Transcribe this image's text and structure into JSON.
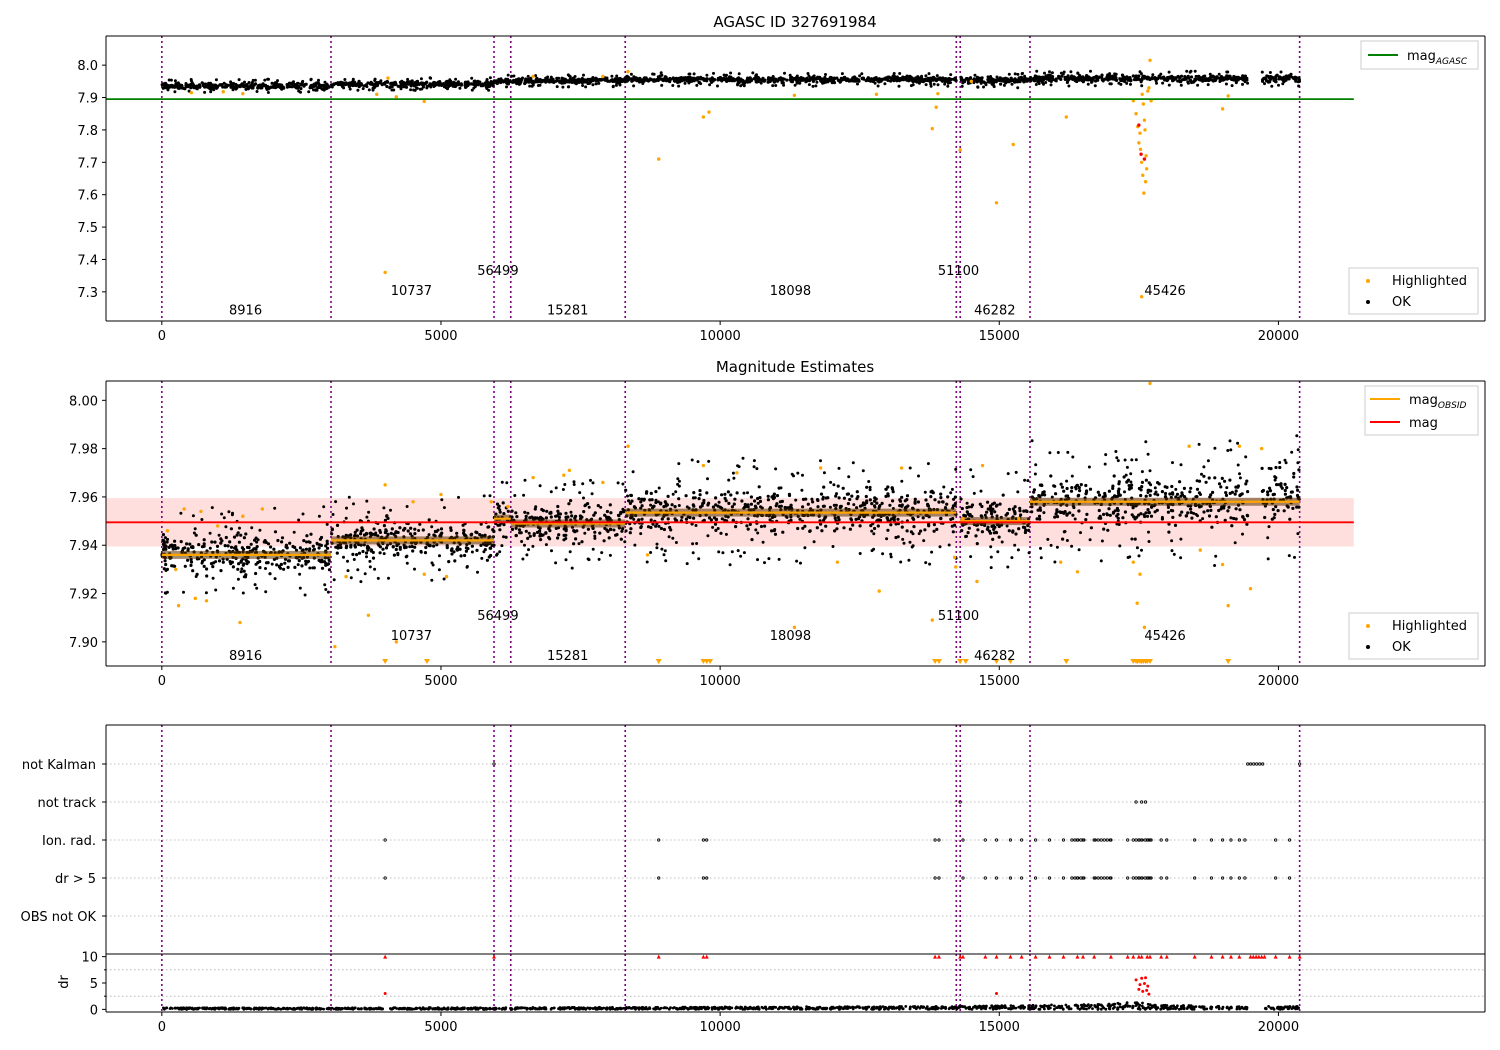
{
  "chart_data": [
    {
      "type": "scatter",
      "id": "panel_mag",
      "title": "AGASC ID 327691984",
      "xlim": [
        -1000,
        23700
      ],
      "ylim": [
        7.21,
        8.09
      ],
      "xticks": [
        0,
        5000,
        10000,
        15000,
        20000
      ],
      "yticks": [
        7.3,
        7.4,
        7.5,
        7.6,
        7.7,
        7.8,
        7.9,
        8.0
      ],
      "ytick_labels": [
        "7.3",
        "7.4",
        "7.5",
        "7.6",
        "7.7",
        "7.8",
        "7.9",
        "8.0"
      ],
      "obs_boundaries": [
        0,
        3030,
        5950,
        6250,
        8300,
        14230,
        14300,
        15550,
        20380
      ],
      "obsid_labels": [
        {
          "text": "8916",
          "x": 1500,
          "y": 7.245
        },
        {
          "text": "10737",
          "x": 4470,
          "y": 7.306
        },
        {
          "text": "56499",
          "x": 6020,
          "y": 7.368
        },
        {
          "text": "15281",
          "x": 7270,
          "y": 7.245
        },
        {
          "text": "18098",
          "x": 11260,
          "y": 7.306
        },
        {
          "text": "51100",
          "x": 14270,
          "y": 7.368
        },
        {
          "text": "46282",
          "x": 14920,
          "y": 7.245
        },
        {
          "text": "45426",
          "x": 17970,
          "y": 7.306
        }
      ],
      "mag_agasc": {
        "value": 7.895,
        "x_range": [
          -1000,
          21350
        ],
        "color": "#008000"
      },
      "ok_band": {
        "segments": [
          {
            "x": [
              0,
              3030
            ],
            "y": [
              7.923,
              7.948
            ]
          },
          {
            "x": [
              3030,
              5950
            ],
            "y": [
              7.93,
              7.953
            ]
          },
          {
            "x": [
              5950,
              8300
            ],
            "y": [
              7.94,
              7.963
            ]
          },
          {
            "x": [
              8300,
              14230
            ],
            "y": [
              7.943,
              7.968
            ]
          },
          {
            "x": [
              14300,
              15550
            ],
            "y": [
              7.939,
              7.966
            ]
          },
          {
            "x": [
              15550,
              19450
            ],
            "y": [
              7.945,
              7.972
            ]
          },
          {
            "x": [
              19700,
              20380
            ],
            "y": [
              7.945,
              7.975
            ]
          }
        ]
      },
      "highlighted_points": [
        [
          530,
          7.915
        ],
        [
          1100,
          7.918
        ],
        [
          1450,
          7.912
        ],
        [
          3850,
          7.91
        ],
        [
          4000,
          7.36
        ],
        [
          4050,
          7.96
        ],
        [
          4200,
          7.902
        ],
        [
          4700,
          7.888
        ],
        [
          6650,
          7.965
        ],
        [
          7900,
          7.965
        ],
        [
          8350,
          7.98
        ],
        [
          8900,
          7.71
        ],
        [
          9700,
          7.84
        ],
        [
          9800,
          7.855
        ],
        [
          11330,
          7.907
        ],
        [
          12800,
          7.91
        ],
        [
          13800,
          7.804
        ],
        [
          13870,
          7.87
        ],
        [
          13900,
          7.912
        ],
        [
          14300,
          7.738
        ],
        [
          14500,
          7.95
        ],
        [
          14950,
          7.575
        ],
        [
          15250,
          7.755
        ],
        [
          16200,
          7.84
        ],
        [
          17400,
          7.89
        ],
        [
          17450,
          7.85
        ],
        [
          17480,
          7.81
        ],
        [
          17500,
          7.76
        ],
        [
          17520,
          7.79
        ],
        [
          17530,
          7.74
        ],
        [
          17550,
          7.7
        ],
        [
          17560,
          7.91
        ],
        [
          17570,
          7.66
        ],
        [
          17580,
          7.88
        ],
        [
          17590,
          7.605
        ],
        [
          17600,
          7.83
        ],
        [
          17610,
          7.8
        ],
        [
          17620,
          7.64
        ],
        [
          17630,
          7.72
        ],
        [
          17640,
          7.68
        ],
        [
          17660,
          7.92
        ],
        [
          17680,
          7.93
        ],
        [
          17700,
          8.015
        ],
        [
          17720,
          7.89
        ],
        [
          17550,
          7.285
        ],
        [
          19000,
          7.865
        ],
        [
          19100,
          7.905
        ]
      ],
      "red_points": [
        [
          17500,
          7.815
        ],
        [
          17540,
          7.725
        ],
        [
          17600,
          7.71
        ]
      ],
      "legend_top": [
        {
          "label": "mag",
          "sub": "AGASC",
          "color": "#008000"
        }
      ],
      "legend_bottom": [
        {
          "label": "Highlighted",
          "color": "#ffa500"
        },
        {
          "label": "OK",
          "color": "#000000"
        }
      ]
    },
    {
      "type": "scatter",
      "id": "panel_est",
      "title": "Magnitude Estimates",
      "xlim": [
        -1000,
        23700
      ],
      "ylim": [
        7.89,
        8.008
      ],
      "xticks": [
        0,
        5000,
        10000,
        15000,
        20000
      ],
      "yticks": [
        7.9,
        7.92,
        7.94,
        7.96,
        7.98,
        8.0
      ],
      "ytick_labels": [
        "7.90",
        "7.92",
        "7.94",
        "7.96",
        "7.98",
        "8.00"
      ],
      "obs_boundaries": [
        0,
        3030,
        5950,
        6250,
        8300,
        14230,
        14300,
        15550,
        20380
      ],
      "obsid_labels": [
        {
          "text": "8916",
          "x": 1500,
          "y": 7.8945
        },
        {
          "text": "10737",
          "x": 4470,
          "y": 7.9028
        },
        {
          "text": "56499",
          "x": 6020,
          "y": 7.9111
        },
        {
          "text": "15281",
          "x": 7270,
          "y": 7.8945
        },
        {
          "text": "18098",
          "x": 11260,
          "y": 7.9028
        },
        {
          "text": "51100",
          "x": 14270,
          "y": 7.9111
        },
        {
          "text": "46282",
          "x": 14920,
          "y": 7.8945
        },
        {
          "text": "45426",
          "x": 17970,
          "y": 7.9028
        }
      ],
      "mag": {
        "value": 7.9495,
        "band": [
          7.9395,
          7.9595
        ],
        "x_range": [
          -1000,
          21350
        ],
        "color": "#ff0000"
      },
      "mag_obsid": [
        {
          "x": [
            0,
            3030
          ],
          "y": 7.936
        },
        {
          "x": [
            3030,
            5950
          ],
          "y": 7.942
        },
        {
          "x": [
            5950,
            6250
          ],
          "y": 7.951
        },
        {
          "x": [
            6250,
            8300
          ],
          "y": 7.949
        },
        {
          "x": [
            8300,
            14230
          ],
          "y": 7.9535
        },
        {
          "x": [
            14300,
            15550
          ],
          "y": 7.95
        },
        {
          "x": [
            15550,
            20380
          ],
          "y": 7.958
        }
      ],
      "ok_band": {
        "segments": [
          {
            "x": [
              0,
              3030
            ],
            "y": [
              7.925,
              7.948
            ]
          },
          {
            "x": [
              3030,
              5950
            ],
            "y": [
              7.931,
              7.953
            ]
          },
          {
            "x": [
              5950,
              6250
            ],
            "y": [
              7.942,
              7.962
            ]
          },
          {
            "x": [
              6250,
              8300
            ],
            "y": [
              7.938,
              7.96
            ]
          },
          {
            "x": [
              8300,
              14230
            ],
            "y": [
              7.941,
              7.967
            ]
          },
          {
            "x": [
              14300,
              15550
            ],
            "y": [
              7.937,
              7.963
            ]
          },
          {
            "x": [
              15550,
              19450
            ],
            "y": [
              7.942,
              7.973
            ]
          },
          {
            "x": [
              19700,
              20380
            ],
            "y": [
              7.944,
              7.976
            ]
          }
        ]
      },
      "highlighted_points": [
        [
          100,
          7.946
        ],
        [
          250,
          7.93
        ],
        [
          300,
          7.915
        ],
        [
          400,
          7.955
        ],
        [
          600,
          7.918
        ],
        [
          700,
          7.954
        ],
        [
          800,
          7.917
        ],
        [
          1000,
          7.948
        ],
        [
          1400,
          7.908
        ],
        [
          1450,
          7.952
        ],
        [
          1800,
          7.955
        ],
        [
          3100,
          7.898
        ],
        [
          3300,
          7.927
        ],
        [
          3700,
          7.911
        ],
        [
          4000,
          7.965
        ],
        [
          4200,
          7.9
        ],
        [
          4500,
          7.958
        ],
        [
          4700,
          7.928
        ],
        [
          5000,
          7.961
        ],
        [
          5100,
          7.927
        ],
        [
          5900,
          7.958
        ],
        [
          6200,
          7.956
        ],
        [
          6650,
          7.968
        ],
        [
          7200,
          7.969
        ],
        [
          7300,
          7.971
        ],
        [
          7900,
          7.966
        ],
        [
          8350,
          7.981
        ],
        [
          8700,
          7.936
        ],
        [
          9700,
          7.973
        ],
        [
          10300,
          7.97
        ],
        [
          11330,
          7.906
        ],
        [
          11800,
          7.972
        ],
        [
          12100,
          7.933
        ],
        [
          12850,
          7.921
        ],
        [
          13250,
          7.972
        ],
        [
          13800,
          7.909
        ],
        [
          14200,
          7.935
        ],
        [
          14220,
          7.931
        ],
        [
          14350,
          7.951
        ],
        [
          14600,
          7.925
        ],
        [
          14700,
          7.973
        ],
        [
          15350,
          7.951
        ],
        [
          16100,
          7.933
        ],
        [
          16400,
          7.929
        ],
        [
          17400,
          7.933
        ],
        [
          17470,
          7.916
        ],
        [
          17520,
          7.928
        ],
        [
          17600,
          7.906
        ],
        [
          17700,
          8.007
        ],
        [
          18400,
          7.981
        ],
        [
          18600,
          7.938
        ],
        [
          19000,
          7.932
        ],
        [
          19100,
          7.915
        ],
        [
          19300,
          7.981
        ],
        [
          19500,
          7.922
        ],
        [
          19700,
          7.98
        ]
      ],
      "triangle_points": [
        4000,
        4750,
        8900,
        9700,
        9760,
        9820,
        13850,
        13920,
        14300,
        14400,
        14950,
        15200,
        16200,
        17400,
        17450,
        17480,
        17520,
        17550,
        17580,
        17620,
        17650,
        17700,
        19100
      ],
      "legend_top": [
        {
          "label": "mag",
          "sub": "OBSID",
          "color": "#ffa500"
        },
        {
          "label": "mag",
          "sub": "",
          "color": "#ff0000"
        }
      ],
      "legend_bottom": [
        {
          "label": "Highlighted",
          "color": "#ffa500"
        },
        {
          "label": "OK",
          "color": "#000000"
        }
      ]
    },
    {
      "type": "scatter",
      "id": "panel_flags",
      "xlim": [
        -1000,
        23700
      ],
      "categories": [
        "not Kalman",
        "not track",
        "Ion. rad.",
        "dr > 5",
        "OBS not OK"
      ],
      "obs_boundaries": [
        0,
        3030,
        5950,
        6250,
        8300,
        14230,
        14300,
        15550,
        20380
      ],
      "flags": {
        "not Kalman": {
          "points": [
            5950,
            20380
          ],
          "ranges": [
            [
              19450,
              19750
            ]
          ]
        },
        "not track": {
          "points": [
            14300,
            17450,
            17550,
            17620
          ],
          "ranges": []
        },
        "Ion. rad.": {
          "points": [
            4000,
            8900,
            9700,
            9760,
            13850,
            13920,
            14350,
            14750,
            14950,
            15200,
            15400,
            15650,
            15900,
            16150,
            16400,
            16500,
            16700,
            17000,
            17300,
            17400,
            17500,
            17550,
            17650,
            17700,
            17900,
            18000,
            18500,
            18800,
            19000,
            19150,
            19300,
            19400,
            19950,
            20200
          ],
          "ranges": [
            [
              16300,
              16520
            ],
            [
              16720,
              17020
            ],
            [
              17450,
              17720
            ]
          ]
        },
        "dr > 5": {
          "points": [
            4000,
            8900,
            9700,
            9760,
            13850,
            13920,
            14350,
            14750,
            14950,
            15200,
            15400,
            15650,
            15900,
            16150,
            16400,
            16500,
            16700,
            17000,
            17300,
            17400,
            17500,
            17550,
            17650,
            17700,
            17900,
            18000,
            18500,
            18800,
            19000,
            19150,
            19300,
            19400,
            19950,
            20200
          ],
          "ranges": [
            [
              16300,
              16520
            ],
            [
              16720,
              17020
            ],
            [
              17450,
              17720
            ]
          ]
        },
        "OBS not OK": {
          "points": [],
          "ranges": []
        }
      }
    },
    {
      "type": "scatter",
      "id": "panel_dr",
      "ylabel": "dr",
      "xlim": [
        -1000,
        23700
      ],
      "ylim": [
        -0.5,
        10.5
      ],
      "xticks": [
        0,
        5000,
        10000,
        15000,
        20000
      ],
      "yticks": [
        0,
        5,
        10
      ],
      "obs_boundaries": [
        0,
        3030,
        5950,
        6250,
        8300,
        14230,
        14300,
        15550,
        20380
      ],
      "clipped_points_at_10": [
        4000,
        5950,
        8900,
        9700,
        9760,
        13850,
        13920,
        14300,
        14350,
        14750,
        14950,
        15200,
        15400,
        15650,
        15900,
        16150,
        16400,
        16500,
        16700,
        17000,
        17300,
        17400,
        17500,
        17550,
        17650,
        17700,
        17900,
        18000,
        18500,
        18800,
        19000,
        19150,
        19300,
        19500,
        19550,
        19600,
        19650,
        19700,
        19750,
        19950,
        20200,
        20380
      ],
      "red_points": [
        [
          4000,
          3.0
        ],
        [
          14950,
          3.0
        ],
        [
          17450,
          5.6
        ],
        [
          17500,
          3.8
        ],
        [
          17520,
          4.7
        ],
        [
          17550,
          5.9
        ],
        [
          17570,
          3.4
        ],
        [
          17600,
          4.9
        ],
        [
          17620,
          6.0
        ],
        [
          17640,
          3.6
        ],
        [
          17660,
          4.4
        ],
        [
          17680,
          2.9
        ]
      ],
      "ok_level": [
        [
          0,
          0.3
        ],
        [
          3030,
          0.3
        ],
        [
          8300,
          0.4
        ],
        [
          14300,
          0.6
        ],
        [
          15550,
          0.8
        ],
        [
          17000,
          1.0
        ],
        [
          17500,
          1.6
        ],
        [
          17700,
          0.9
        ],
        [
          19450,
          0.5
        ],
        [
          19750,
          0.0
        ],
        [
          19800,
          0.6
        ],
        [
          20380,
          0.6
        ]
      ]
    }
  ]
}
